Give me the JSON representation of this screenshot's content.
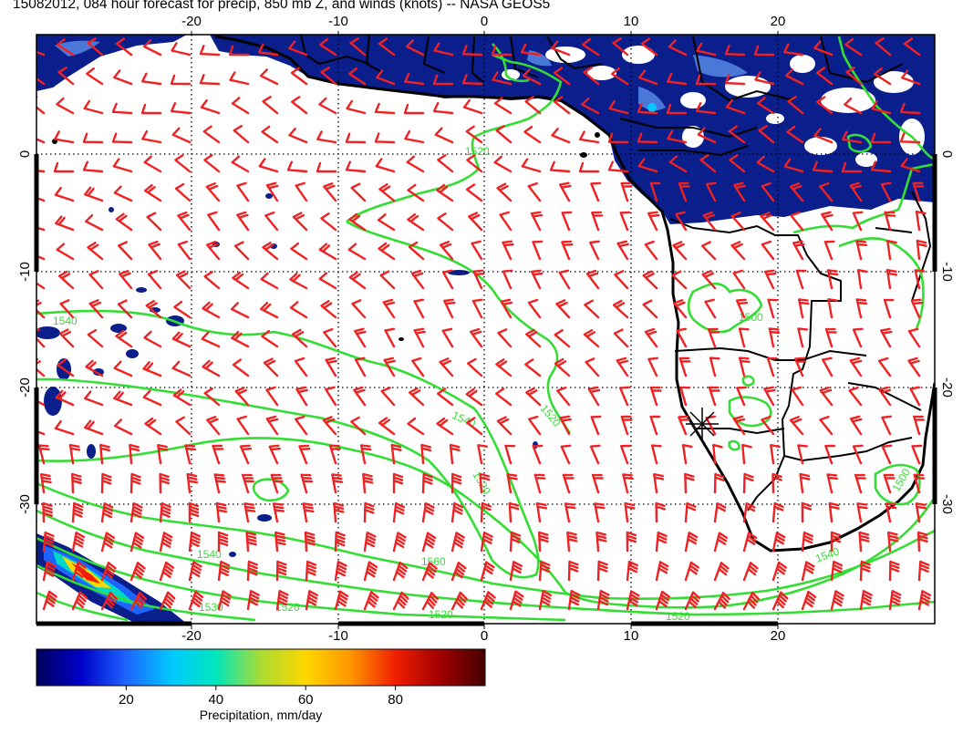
{
  "title": "15082012, 084 hour forecast for precip, 850 mb Z, and winds (knots) -- NASA GEOS5",
  "map": {
    "lon_range": [
      -30,
      30
    ],
    "lat_range": [
      -40,
      10
    ],
    "lon_ticks": [
      -20,
      -10,
      0,
      10,
      20
    ],
    "lat_ticks": [
      0,
      -10,
      -20,
      -30
    ],
    "x_tick_labels": [
      "-20",
      "-10",
      "0",
      "10",
      "20"
    ],
    "y_tick_labels": [
      "0",
      "-10",
      "-20",
      "-30"
    ],
    "gridlines": "dotted",
    "contour_labels": [
      "1540",
      "1520",
      "1540",
      "1520",
      "1500",
      "1520",
      "1560",
      "1540",
      "1520",
      "1520",
      "1540",
      "1530",
      "1520",
      "1500"
    ],
    "marker": "asterisk",
    "colors": {
      "precip_low": "#0a1e8c",
      "precip_mid": "#4a78d8",
      "contours": "#33dd33",
      "wind_barbs": "#ee2222",
      "coastline": "#000000"
    }
  },
  "colorbar": {
    "ticks": [
      "20",
      "40",
      "60",
      "80"
    ],
    "range": [
      0,
      100
    ],
    "label": "Precipitation, mm/day",
    "colors": [
      "#00005a",
      "#0000c8",
      "#1e64ff",
      "#00c8ff",
      "#00e6be",
      "#aadc32",
      "#ffd700",
      "#ff9600",
      "#f01e00",
      "#a00000",
      "#460000"
    ]
  }
}
